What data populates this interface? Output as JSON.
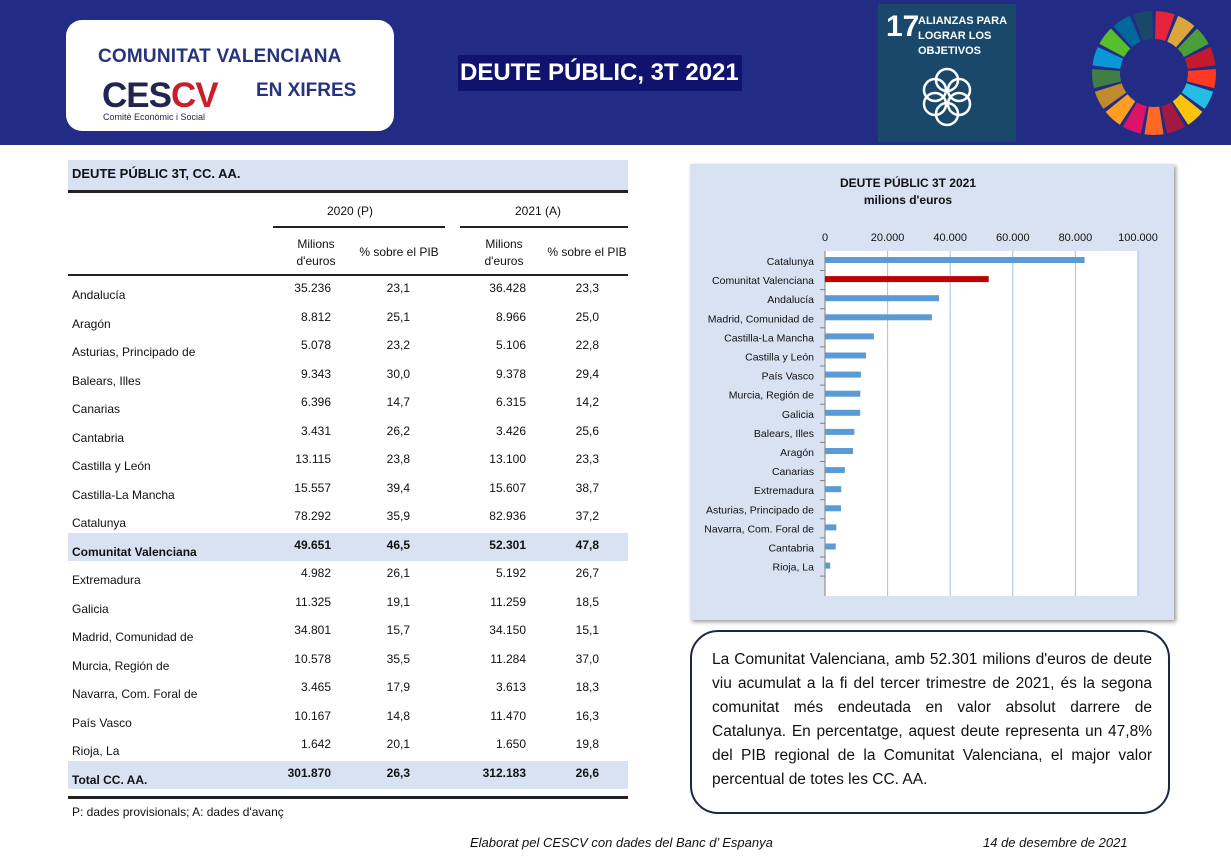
{
  "header": {
    "org_line1": "COMUNITAT VALENCIANA",
    "org_line2": "EN XIFRES",
    "logo_text_dark": "CES",
    "logo_text_red": "CV",
    "logo_subtitle": "Comitè Econòmic i Social",
    "title": "DEUTE PÚBLIC, 3T 2021",
    "sdg_number": "17",
    "sdg_text": "ALIANZAS PARA LOGRAR LOS OBJETIVOS"
  },
  "table": {
    "title": "DEUTE PÚBLIC  3T, CC. AA.",
    "year1": "2020 (P)",
    "year2": "2021 (A)",
    "col_millions": "Milions d'euros",
    "col_pct": "% sobre el PIB",
    "rows": [
      {
        "name": "Andalucía",
        "m2020": "35.236",
        "p2020": "23,1",
        "m2021": "36.428",
        "p2021": "23,3"
      },
      {
        "name": "Aragón",
        "m2020": "8.812",
        "p2020": "25,1",
        "m2021": "8.966",
        "p2021": "25,0"
      },
      {
        "name": "Asturias, Principado de",
        "m2020": "5.078",
        "p2020": "23,2",
        "m2021": "5.106",
        "p2021": "22,8"
      },
      {
        "name": "Balears, Illes",
        "m2020": "9.343",
        "p2020": "30,0",
        "m2021": "9.378",
        "p2021": "29,4"
      },
      {
        "name": "Canarias",
        "m2020": "6.396",
        "p2020": "14,7",
        "m2021": "6.315",
        "p2021": "14,2"
      },
      {
        "name": "Cantabria",
        "m2020": "3.431",
        "p2020": "26,2",
        "m2021": "3.426",
        "p2021": "25,6"
      },
      {
        "name": "Castilla y León",
        "m2020": "13.115",
        "p2020": "23,8",
        "m2021": "13.100",
        "p2021": "23,3"
      },
      {
        "name": "Castilla-La Mancha",
        "m2020": "15.557",
        "p2020": "39,4",
        "m2021": "15.607",
        "p2021": "38,7"
      },
      {
        "name": "Catalunya",
        "m2020": "78.292",
        "p2020": "35,9",
        "m2021": "82.936",
        "p2021": "37,2"
      },
      {
        "name": "Comunitat Valenciana",
        "m2020": "49.651",
        "p2020": "46,5",
        "m2021": "52.301",
        "p2021": "47,8"
      },
      {
        "name": "Extremadura",
        "m2020": "4.982",
        "p2020": "26,1",
        "m2021": "5.192",
        "p2021": "26,7"
      },
      {
        "name": "Galicia",
        "m2020": "11.325",
        "p2020": "19,1",
        "m2021": "11.259",
        "p2021": "18,5"
      },
      {
        "name": "Madrid, Comunidad de",
        "m2020": "34.801",
        "p2020": "15,7",
        "m2021": "34.150",
        "p2021": "15,1"
      },
      {
        "name": "Murcia, Región de",
        "m2020": "10.578",
        "p2020": "35,5",
        "m2021": "11.284",
        "p2021": "37,0"
      },
      {
        "name": "Navarra, Com. Foral de",
        "m2020": "3.465",
        "p2020": "17,9",
        "m2021": "3.613",
        "p2021": "18,3"
      },
      {
        "name": "País Vasco",
        "m2020": "10.167",
        "p2020": "14,8",
        "m2021": "11.470",
        "p2021": "16,3"
      },
      {
        "name": "Rioja, La",
        "m2020": "1.642",
        "p2020": "20,1",
        "m2021": "1.650",
        "p2021": "19,8"
      },
      {
        "name": "Total CC. AA.",
        "m2020": "301.870",
        "p2020": "26,3",
        "m2021": "312.183",
        "p2021": "26,6"
      }
    ],
    "note": "P: dades provisionals; A: dades d'avanç"
  },
  "chart_data": {
    "type": "bar",
    "orientation": "horizontal",
    "title": "DEUTE PÚBLIC 3T 2021",
    "subtitle": "milions d'euros",
    "categories": [
      "Catalunya",
      "Comunitat Valenciana",
      "Andalucía",
      "Madrid, Comunidad de",
      "Castilla-La Mancha",
      "Castilla y León",
      "País Vasco",
      "Murcia, Región de",
      "Galicia",
      "Balears, Illes",
      "Aragón",
      "Canarias",
      "Extremadura",
      "Asturias, Principado de",
      "Navarra, Com. Foral de",
      "Cantabria",
      "Rioja, La"
    ],
    "values": [
      82936,
      52301,
      36428,
      34150,
      15607,
      13100,
      11470,
      11284,
      11259,
      9378,
      8966,
      6315,
      5192,
      5106,
      3613,
      3426,
      1650
    ],
    "highlight": "Comunitat Valenciana",
    "xlim": [
      0,
      100000
    ],
    "x_ticks": [
      "0",
      "20.000",
      "40.000",
      "60.000",
      "80.000",
      "100.000"
    ],
    "x_axis_position": "top",
    "grid": true,
    "colors": {
      "default": "#5b9bd5",
      "highlight": "#c00000"
    }
  },
  "summary_text": "La Comunitat Valenciana, amb 52.301 milions d'euros de deute viu acumulat a la fi del tercer trimestre de 2021, és la segona comunitat més endeutada en valor absolut darrere de Catalunya. En percentatge, aquest deute representa un 47,8% del PIB regional de la Comunitat Valenciana, el major valor percentual de totes les CC. AA.",
  "footer": {
    "source": "Elaborat pel CESCV con dades del Banc d’ Espanya",
    "date": "14 de desembre de 2021"
  }
}
